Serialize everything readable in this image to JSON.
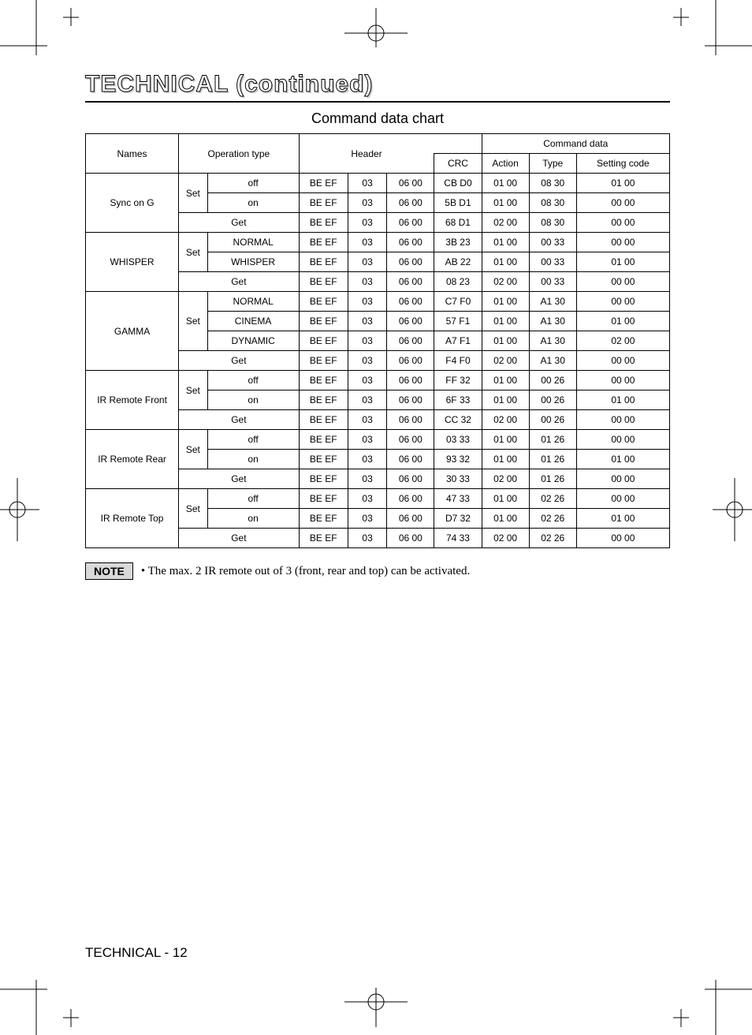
{
  "page": {
    "title": "TECHNICAL (continued)",
    "subtitle": "Command data chart",
    "footer": "TECHNICAL - 12"
  },
  "note": {
    "label": "NOTE",
    "text": "• The max. 2 IR remote out of 3 (front, rear and top) can be activated."
  },
  "headers": {
    "names": "Names",
    "op": "Operation type",
    "header": "Header",
    "cmd": "Command data",
    "crc": "CRC",
    "action": "Action",
    "type": "Type",
    "setting": "Setting code"
  },
  "ops": {
    "set": "Set",
    "get": "Get"
  },
  "groups": [
    {
      "name": "Sync on G",
      "set": [
        {
          "label": "off",
          "h1": "BE  EF",
          "h2": "03",
          "h3": "06  00",
          "crc": "CB  D0",
          "action": "01  00",
          "type": "08  30",
          "setting": "01  00"
        },
        {
          "label": "on",
          "h1": "BE  EF",
          "h2": "03",
          "h3": "06  00",
          "crc": "5B  D1",
          "action": "01  00",
          "type": "08  30",
          "setting": "00  00"
        }
      ],
      "get": {
        "h1": "BE  EF",
        "h2": "03",
        "h3": "06  00",
        "crc": "68  D1",
        "action": "02  00",
        "type": "08  30",
        "setting": "00  00"
      }
    },
    {
      "name": "WHISPER",
      "set": [
        {
          "label": "NORMAL",
          "h1": "BE  EF",
          "h2": "03",
          "h3": "06  00",
          "crc": "3B  23",
          "action": "01  00",
          "type": "00  33",
          "setting": "00  00"
        },
        {
          "label": "WHISPER",
          "h1": "BE  EF",
          "h2": "03",
          "h3": "06  00",
          "crc": "AB  22",
          "action": "01  00",
          "type": "00  33",
          "setting": "01  00"
        }
      ],
      "get": {
        "h1": "BE  EF",
        "h2": "03",
        "h3": "06  00",
        "crc": "08  23",
        "action": "02  00",
        "type": "00  33",
        "setting": "00  00"
      }
    },
    {
      "name": "GAMMA",
      "set": [
        {
          "label": "NORMAL",
          "h1": "BE  EF",
          "h2": "03",
          "h3": "06  00",
          "crc": "C7  F0",
          "action": "01  00",
          "type": "A1  30",
          "setting": "00  00"
        },
        {
          "label": "CINEMA",
          "h1": "BE  EF",
          "h2": "03",
          "h3": "06  00",
          "crc": "57  F1",
          "action": "01  00",
          "type": "A1  30",
          "setting": "01  00"
        },
        {
          "label": "DYNAMIC",
          "h1": "BE  EF",
          "h2": "03",
          "h3": "06  00",
          "crc": "A7  F1",
          "action": "01  00",
          "type": "A1  30",
          "setting": "02  00"
        }
      ],
      "get": {
        "h1": "BE  EF",
        "h2": "03",
        "h3": "06  00",
        "crc": "F4  F0",
        "action": "02  00",
        "type": "A1  30",
        "setting": "00  00"
      }
    },
    {
      "name": "IR Remote Front",
      "set": [
        {
          "label": "off",
          "h1": "BE  EF",
          "h2": "03",
          "h3": "06  00",
          "crc": "FF  32",
          "action": "01  00",
          "type": "00  26",
          "setting": "00  00"
        },
        {
          "label": "on",
          "h1": "BE  EF",
          "h2": "03",
          "h3": "06  00",
          "crc": "6F  33",
          "action": "01  00",
          "type": "00  26",
          "setting": "01  00"
        }
      ],
      "get": {
        "h1": "BE  EF",
        "h2": "03",
        "h3": "06  00",
        "crc": "CC  32",
        "action": "02  00",
        "type": "00  26",
        "setting": "00  00"
      }
    },
    {
      "name": "IR Remote Rear",
      "set": [
        {
          "label": "off",
          "h1": "BE  EF",
          "h2": "03",
          "h3": "06  00",
          "crc": "03  33",
          "action": "01  00",
          "type": "01  26",
          "setting": "00  00"
        },
        {
          "label": "on",
          "h1": "BE  EF",
          "h2": "03",
          "h3": "06  00",
          "crc": "93  32",
          "action": "01  00",
          "type": "01  26",
          "setting": "01  00"
        }
      ],
      "get": {
        "h1": "BE  EF",
        "h2": "03",
        "h3": "06  00",
        "crc": "30  33",
        "action": "02  00",
        "type": "01  26",
        "setting": "00  00"
      }
    },
    {
      "name": "IR Remote Top",
      "set": [
        {
          "label": "off",
          "h1": "BE  EF",
          "h2": "03",
          "h3": "06  00",
          "crc": "47  33",
          "action": "01  00",
          "type": "02  26",
          "setting": "00  00"
        },
        {
          "label": "on",
          "h1": "BE  EF",
          "h2": "03",
          "h3": "06  00",
          "crc": "D7  32",
          "action": "01  00",
          "type": "02  26",
          "setting": "01  00"
        }
      ],
      "get": {
        "h1": "BE  EF",
        "h2": "03",
        "h3": "06  00",
        "crc": "74  33",
        "action": "02  00",
        "type": "02  26",
        "setting": "00  00"
      }
    }
  ]
}
